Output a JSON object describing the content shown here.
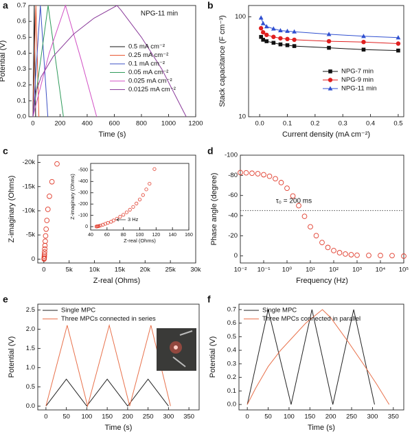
{
  "chart_data": [
    {
      "type": "line",
      "label": "a",
      "xlabel": "Time (s)",
      "ylabel": "Potential (V)",
      "annotation": "NPG-11 min",
      "xlim": [
        -30,
        1200
      ],
      "xticks": [
        0,
        200,
        400,
        600,
        800,
        1000,
        1200
      ],
      "ylim": [
        0,
        0.7
      ],
      "yticks": [
        {
          "value": 0,
          "label": "0.0"
        },
        0.1,
        0.2,
        0.3,
        0.4,
        0.5,
        0.6,
        0.7
      ],
      "legend": "upper right",
      "series": [
        {
          "name": "0.5 mA cm⁻²",
          "color": "#111111",
          "x": [
            0,
            10,
            20
          ],
          "values": [
            0,
            0.7,
            0
          ]
        },
        {
          "name": "0.25 mA cm⁻²",
          "color": "#e8552f",
          "x": [
            0,
            22,
            44
          ],
          "values": [
            0,
            0.7,
            0
          ]
        },
        {
          "name": "0.1 mA cm⁻²",
          "color": "#3b4fc4",
          "x": [
            0,
            55,
            110
          ],
          "values": [
            0,
            0.7,
            0
          ]
        },
        {
          "name": "0.05 mA cm⁻²",
          "color": "#2e9a5a",
          "x": [
            0,
            112,
            225
          ],
          "values": [
            0,
            0.7,
            0
          ]
        },
        {
          "name": "0.025 mA cm⁻²",
          "color": "#d14fc4",
          "x": [
            0,
            120,
            240,
            355,
            470
          ],
          "values": [
            0,
            0.4,
            0.7,
            0.36,
            0
          ]
        },
        {
          "name": "0.0125 mA cm⁻²",
          "color": "#8a3a9a",
          "x": [
            0,
            20,
            60,
            150,
            300,
            450,
            620,
            650,
            800,
            950,
            1130
          ],
          "values": [
            0,
            0.15,
            0.25,
            0.38,
            0.52,
            0.62,
            0.7,
            0.67,
            0.5,
            0.3,
            0
          ]
        }
      ]
    },
    {
      "type": "line",
      "label": "b",
      "xlabel": "Current density (mA cm⁻²)",
      "ylabel": "Stack capacitance (F cm⁻³)",
      "xlim": [
        -0.04,
        0.52
      ],
      "xticks": [
        {
          "value": 0,
          "label": "0.0"
        },
        0.1,
        0.2,
        0.3,
        0.4,
        0.5
      ],
      "ylog": true,
      "ylim": [
        10,
        130
      ],
      "yticks": [
        10,
        100
      ],
      "legend": "lower right",
      "series": [
        {
          "name": "NPG-7 min",
          "color": "#111111",
          "marker": "square",
          "x": [
            0.005,
            0.0125,
            0.025,
            0.05,
            0.075,
            0.1,
            0.125,
            0.25,
            0.375,
            0.5
          ],
          "values": [
            63,
            59,
            57,
            55,
            53,
            52,
            51,
            49,
            47,
            46
          ]
        },
        {
          "name": "NPG-9 min",
          "color": "#e02020",
          "marker": "circle",
          "x": [
            0.005,
            0.0125,
            0.025,
            0.05,
            0.075,
            0.1,
            0.125,
            0.25,
            0.375,
            0.5
          ],
          "values": [
            77,
            70,
            66,
            63,
            61,
            60,
            59,
            57,
            56,
            54
          ]
        },
        {
          "name": "NPG-11 min",
          "color": "#3050d0",
          "marker": "triangle",
          "x": [
            0.005,
            0.0125,
            0.025,
            0.05,
            0.075,
            0.1,
            0.125,
            0.25,
            0.375,
            0.5
          ],
          "values": [
            98,
            86,
            80,
            76,
            73,
            72,
            71,
            67,
            64,
            62
          ]
        }
      ]
    },
    {
      "type": "scatter",
      "label": "c",
      "xlabel": "Z-real (Ohms)",
      "ylabel": "Z-imaginary (Ohms)",
      "xlim": [
        -1200,
        30000
      ],
      "xticks": [
        0,
        {
          "value": 5000,
          "label": "5k"
        },
        {
          "value": 10000,
          "label": "10k"
        },
        {
          "value": 15000,
          "label": "15k"
        },
        {
          "value": 20000,
          "label": "20k"
        },
        {
          "value": 25000,
          "label": "25k"
        },
        {
          "value": 30000,
          "label": "30k"
        }
      ],
      "ylim": [
        800,
        -21500
      ],
      "yticks": [
        0,
        {
          "value": -5000,
          "label": "-5k"
        },
        {
          "value": -10000,
          "label": "-10k"
        },
        {
          "value": -15000,
          "label": "-15k"
        },
        {
          "value": -20000,
          "label": "-20k"
        }
      ],
      "series": [
        {
          "color": "#e03a2a",
          "marker": "open-circle",
          "x": [
            50,
            60,
            80,
            100,
            120,
            150,
            180,
            220,
            280,
            350,
            450,
            600,
            800,
            1100,
            1600,
            2600
          ],
          "values": [
            -20,
            -100,
            -300,
            -600,
            -1000,
            -1500,
            -2100,
            -2800,
            -3700,
            -4800,
            -6200,
            -8000,
            -10300,
            -13000,
            -16000,
            -19700
          ]
        }
      ],
      "inset": {
        "type": "scatter",
        "xlabel": "Z-real (Ohms)",
        "ylabel": "Z-imaginary (Ohms)",
        "annotation": "3 Hz",
        "xlim": [
          40,
          160
        ],
        "xticks": [
          40,
          60,
          80,
          100,
          120,
          140,
          160
        ],
        "ylim": [
          30,
          -560
        ],
        "yticks": [
          0,
          -100,
          -200,
          -300,
          -400,
          -500
        ],
        "series": [
          {
            "color": "#e03a2a",
            "marker": "small-circle",
            "x": [
              47,
              48,
              49,
              50,
              52,
              55,
              58,
              61,
              65,
              68,
              72,
              76,
              80,
              84,
              88,
              92,
              96,
              100,
              104,
              108,
              112,
              118
            ],
            "values": [
              -1,
              -2,
              -3,
              -5,
              -10,
              -17,
              -25,
              -33,
              -43,
              -55,
              -70,
              -87,
              -105,
              -127,
              -150,
              -175,
              -205,
              -240,
              -280,
              -330,
              -380,
              -510
            ]
          }
        ]
      }
    },
    {
      "type": "scatter",
      "label": "d",
      "xlabel": "Frequency (Hz)",
      "ylabel": "Phase angle (degree)",
      "annotation": "τ₀ = 200 ms",
      "xlog": true,
      "xlim": [
        0.01,
        100000
      ],
      "xticks": [
        {
          "value": 0.01,
          "label": "10⁻²"
        },
        {
          "value": 0.1,
          "label": "10⁻¹"
        },
        {
          "value": 1,
          "label": "10⁰"
        },
        {
          "value": 10,
          "label": "10¹"
        },
        {
          "value": 100,
          "label": "10²"
        },
        {
          "value": 1000,
          "label": "10³"
        },
        {
          "value": 10000,
          "label": "10⁴"
        },
        {
          "value": 100000,
          "label": "10⁵"
        }
      ],
      "ylim": [
        7,
        -100
      ],
      "yticks": [
        0,
        -20,
        -40,
        -60,
        -80,
        -100
      ],
      "hline": -45,
      "series": [
        {
          "color": "#e03a2a",
          "marker": "open-circle",
          "x": [
            0.01,
            0.0178,
            0.0316,
            0.0562,
            0.1,
            0.178,
            0.316,
            0.562,
            1,
            1.78,
            3.16,
            5.62,
            10,
            17.8,
            31.6,
            56.2,
            100,
            178,
            316,
            562,
            1000,
            3162,
            10000,
            31623,
            100000
          ],
          "values": [
            -82.7,
            -82.5,
            -82.1,
            -81.6,
            -80.6,
            -79.1,
            -76.6,
            -72.8,
            -67.2,
            -59.5,
            -49.9,
            -39.3,
            -28.9,
            -20.1,
            -13.3,
            -8.4,
            -5.3,
            -3.2,
            -1.9,
            -1.2,
            -0.7,
            -0.5,
            -0.4,
            -0.3,
            0.2
          ]
        }
      ]
    },
    {
      "type": "line",
      "label": "e",
      "xlabel": "Time (s)",
      "ylabel": "Potential (V)",
      "xlim": [
        -20,
        375
      ],
      "xticks": [
        0,
        50,
        100,
        150,
        200,
        250,
        300,
        350
      ],
      "ylim": [
        -0.1,
        2.65
      ],
      "yticks": [
        {
          "value": 0,
          "label": "0.0"
        },
        0.5,
        {
          "value": 1,
          "label": "1.0"
        },
        1.5,
        {
          "value": 2,
          "label": "2.0"
        },
        2.5
      ],
      "legend": "upper left",
      "series": [
        {
          "name": "Single MPC",
          "color": "#222222",
          "x": [
            0,
            50,
            100,
            150,
            200,
            250,
            300
          ],
          "values": [
            0,
            0.7,
            0,
            0.7,
            0,
            0.7,
            0
          ]
        },
        {
          "name": "Three MPCs connected in series",
          "color": "#e8704a",
          "x": [
            0,
            52,
            102,
            155,
            205,
            257,
            305
          ],
          "values": [
            0,
            2.1,
            0,
            2.1,
            0,
            2.1,
            0
          ]
        }
      ]
    },
    {
      "type": "line",
      "label": "f",
      "xlabel": "Time (s)",
      "ylabel": "Potential (V)",
      "xlim": [
        -20,
        375
      ],
      "xticks": [
        0,
        50,
        100,
        150,
        200,
        250,
        300,
        350
      ],
      "ylim": [
        -0.04,
        0.74
      ],
      "yticks": [
        {
          "value": 0,
          "label": "0.0"
        },
        0.1,
        0.2,
        0.3,
        0.4,
        0.5,
        0.6,
        0.7
      ],
      "legend": "upper left",
      "series": [
        {
          "name": "Single MPC",
          "color": "#222222",
          "x": [
            0,
            50,
            105,
            155,
            205,
            255,
            305
          ],
          "values": [
            0,
            0.7,
            0,
            0.7,
            0,
            0.7,
            0
          ]
        },
        {
          "name": "Three MPCs connected in parallel",
          "color": "#e8704a",
          "x": [
            0,
            20,
            50,
            80,
            110,
            140,
            180,
            200,
            240,
            280,
            310,
            340
          ],
          "values": [
            0,
            0.12,
            0.28,
            0.4,
            0.5,
            0.6,
            0.7,
            0.64,
            0.47,
            0.29,
            0.15,
            0
          ]
        }
      ]
    }
  ]
}
